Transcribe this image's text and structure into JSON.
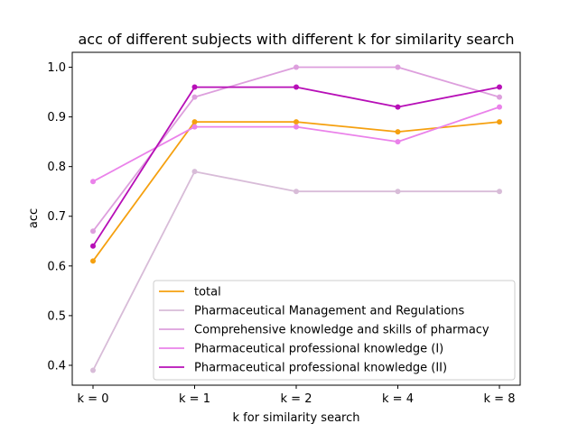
{
  "chart_data": {
    "type": "line",
    "title": "acc of different subjects with different k for similarity search",
    "xlabel": "k for similarity search",
    "ylabel": "acc",
    "categories": [
      "k = 0",
      "k = 1",
      "k = 2",
      "k = 4",
      "k = 8"
    ],
    "ylim": [
      0.36,
      1.03
    ],
    "yticks": [
      0.4,
      0.5,
      0.6,
      0.7,
      0.8,
      0.9,
      1.0
    ],
    "ytick_labels": [
      "0.4",
      "0.5",
      "0.6",
      "0.7",
      "0.8",
      "0.9",
      "1.0"
    ],
    "grid": false,
    "legend_position": "lower-right",
    "series": [
      {
        "name": "total",
        "color": "#f5a00f",
        "values": [
          0.61,
          0.89,
          0.89,
          0.87,
          0.89
        ]
      },
      {
        "name": "Pharmaceutical Management and Regulations",
        "color": "#d8bcd8",
        "values": [
          0.39,
          0.79,
          0.75,
          0.75,
          0.75
        ]
      },
      {
        "name": "Comprehensive knowledge and skills of pharmacy",
        "color": "#dd9fdd",
        "values": [
          0.67,
          0.94,
          1.0,
          1.0,
          0.94
        ]
      },
      {
        "name": "Pharmaceutical professional knowledge (I)",
        "color": "#ea82ea",
        "values": [
          0.77,
          0.88,
          0.88,
          0.85,
          0.92
        ]
      },
      {
        "name": "Pharmaceutical professional knowledge (II)",
        "color": "#b70fb7",
        "values": [
          0.64,
          0.96,
          0.96,
          0.92,
          0.96
        ]
      }
    ]
  }
}
